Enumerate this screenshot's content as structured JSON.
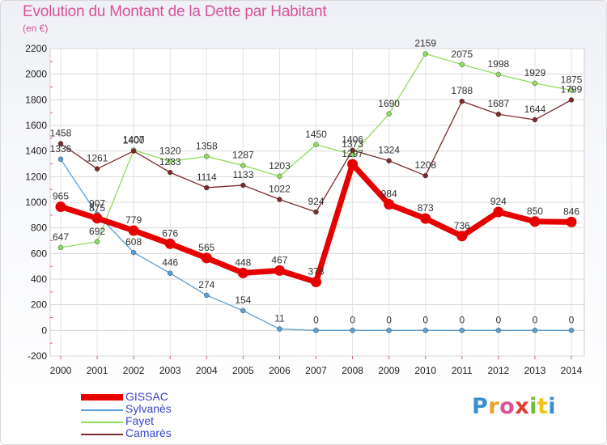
{
  "title": "Evolution du Montant de la Dette par Habitant",
  "subtitle": "(en €)",
  "logo": {
    "text": "Proxiti",
    "letter_colors": [
      "#3a8fd0",
      "#e8a12a",
      "#d9539a",
      "#e03a2f",
      "#6fbf3a",
      "#f0c419",
      "#3a8fd0"
    ]
  },
  "chart_data": {
    "type": "line",
    "x": [
      "2000",
      "2001",
      "2002",
      "2003",
      "2004",
      "2005",
      "2006",
      "2007",
      "2008",
      "2009",
      "2010",
      "2011",
      "2012",
      "2013",
      "2014"
    ],
    "ylim": [
      -200,
      2200
    ],
    "yticks": [
      "-200",
      "0",
      "200",
      "400",
      "600",
      "800",
      "1000",
      "1200",
      "1400",
      "1600",
      "1800",
      "2000",
      "2200"
    ],
    "grid": true,
    "legend_position": "bottom-left",
    "series": [
      {
        "name": "Fayet",
        "color": "#8fdc5c",
        "values": [
          647,
          692,
          1407,
          1320,
          1358,
          1287,
          1203,
          1450,
          1373,
          1690,
          2159,
          2075,
          1998,
          1929,
          1875
        ],
        "labels": [
          "647",
          "692",
          "1407",
          "1320",
          "1358",
          "1287",
          "1203",
          "1450",
          "1373",
          "1690",
          "2159",
          "2075",
          "1998",
          "1929",
          "1875"
        ]
      },
      {
        "name": "Camarès",
        "color": "#7a2a2a",
        "values": [
          1458,
          1261,
          1400,
          1233,
          1114,
          1133,
          1022,
          924,
          1406,
          1324,
          1208,
          1788,
          1687,
          1644,
          1799
        ],
        "labels": [
          "1458",
          "1261",
          "1400",
          "1233",
          "1114",
          "1133",
          "1022",
          "924",
          "1406",
          "1324",
          "1208",
          "1788",
          "1687",
          "1644",
          "1799"
        ]
      },
      {
        "name": "Sylvanès",
        "color": "#5a9fd4",
        "values": [
          1336,
          907,
          608,
          446,
          274,
          154,
          11,
          0,
          0,
          0,
          0,
          0,
          0,
          0,
          0
        ],
        "labels": [
          "1336",
          "907",
          "608",
          "446",
          "274",
          "154",
          "11",
          "0",
          "0",
          "0",
          "0",
          "0",
          "0",
          "0",
          "0"
        ]
      },
      {
        "name": "GISSAC",
        "color": "#e60000",
        "values": [
          965,
          875,
          779,
          676,
          565,
          448,
          467,
          378,
          1297,
          984,
          873,
          736,
          924,
          850,
          846
        ],
        "labels": [
          "965",
          "875",
          "779",
          "676",
          "565",
          "448",
          "467",
          "378",
          "1297",
          "984",
          "873",
          "736",
          "924",
          "850",
          "846"
        ]
      }
    ],
    "legend": [
      {
        "name": "GISSAC",
        "color": "#e60000",
        "text_color": "#3b45c8"
      },
      {
        "name": "Sylvanès",
        "color": "#5a9fd4",
        "text_color": "#3b45c8"
      },
      {
        "name": "Fayet",
        "color": "#8fdc5c",
        "text_color": "#3b45c8"
      },
      {
        "name": "Camarès",
        "color": "#7a2a2a",
        "text_color": "#3b45c8"
      }
    ]
  }
}
